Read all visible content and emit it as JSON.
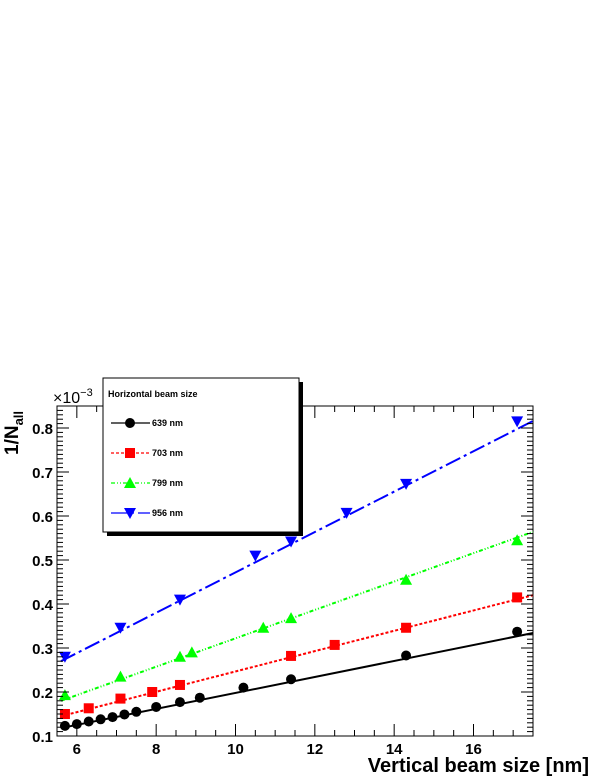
{
  "chart_data": {
    "type": "scatter",
    "xlabel": "Vertical beam size [nm]",
    "ylabel": "1/N",
    "ylabel_sub": "all",
    "y_exponent_prefix": "×10",
    "y_exponent_power": "−3",
    "xlim": [
      5.5,
      17.5
    ],
    "ylim": [
      0.1,
      0.85
    ],
    "x_ticks": [
      6,
      8,
      10,
      12,
      14,
      16
    ],
    "y_ticks": [
      0.1,
      0.2,
      0.3,
      0.4,
      0.5,
      0.6,
      0.7,
      0.8
    ],
    "legend": {
      "title": "Horizontal beam size",
      "position": "top-left"
    },
    "series": [
      {
        "name": "639 nm",
        "color": "#000000",
        "marker": "circle",
        "dash": "",
        "x": [
          5.7,
          6.0,
          6.3,
          6.6,
          6.9,
          7.2,
          7.5,
          8.0,
          8.6,
          9.1,
          10.2,
          11.4,
          14.3,
          17.1
        ],
        "y": [
          0.123,
          0.127,
          0.133,
          0.138,
          0.143,
          0.149,
          0.155,
          0.166,
          0.177,
          0.187,
          0.21,
          0.229,
          0.283,
          0.337
        ],
        "fit": [
          [
            5.6,
            0.118
          ],
          [
            17.5,
            0.334
          ]
        ]
      },
      {
        "name": "703 nm",
        "color": "#ff0000",
        "marker": "square",
        "dash": "3,2",
        "x": [
          5.7,
          6.3,
          7.1,
          7.9,
          8.6,
          11.4,
          12.5,
          14.3,
          17.1
        ],
        "y": [
          0.15,
          0.163,
          0.185,
          0.2,
          0.216,
          0.282,
          0.307,
          0.346,
          0.415
        ],
        "fit": [
          [
            5.6,
            0.145
          ],
          [
            17.5,
            0.42
          ]
        ]
      },
      {
        "name": "799 nm",
        "color": "#00ff00",
        "marker": "triangle-up",
        "dash": "4,2,1,2,1,2",
        "x": [
          5.7,
          7.1,
          8.6,
          8.9,
          10.7,
          11.4,
          14.3,
          17.1
        ],
        "y": [
          0.193,
          0.235,
          0.28,
          0.29,
          0.346,
          0.368,
          0.455,
          0.545
        ],
        "fit": [
          [
            5.6,
            0.18
          ],
          [
            17.5,
            0.564
          ]
        ]
      },
      {
        "name": "956 nm",
        "color": "#0000ff",
        "marker": "triangle-down",
        "dash": "16,4,3,4",
        "x": [
          5.7,
          7.1,
          8.6,
          10.5,
          11.4,
          12.8,
          14.3,
          17.1
        ],
        "y": [
          0.28,
          0.346,
          0.41,
          0.51,
          0.542,
          0.607,
          0.673,
          0.815
        ],
        "fit": [
          [
            5.6,
            0.27
          ],
          [
            17.5,
            0.816
          ]
        ]
      }
    ]
  }
}
